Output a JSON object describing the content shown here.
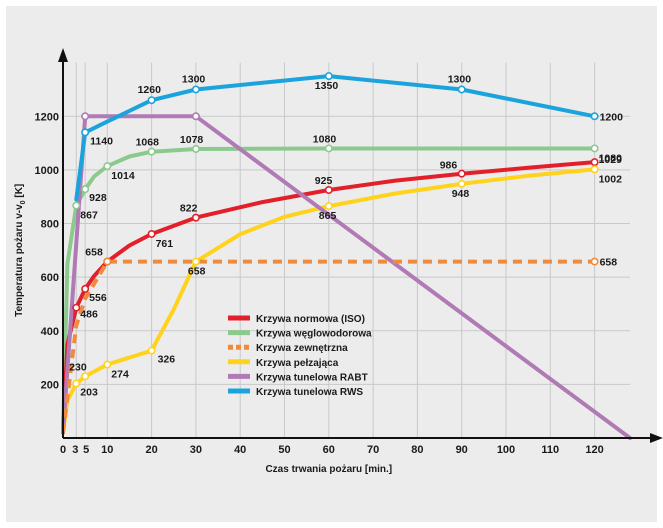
{
  "chart_data": {
    "type": "line",
    "title": "",
    "xlabel": "Czas trwania pożaru [min.]",
    "ylabel": "Temperatura pożaru v-v",
    "ylabel_sub": "0",
    "ylabel_unit": " [K]",
    "xlim": [
      0,
      128
    ],
    "ylim": [
      0,
      1400
    ],
    "x_ticks": [
      0,
      3,
      5,
      10,
      20,
      30,
      40,
      50,
      60,
      70,
      80,
      90,
      100,
      110,
      120
    ],
    "x_tick_labels": [
      "0",
      "3",
      "5",
      "10",
      "20",
      "30",
      "40",
      "50",
      "60",
      "70",
      "80",
      "90",
      "100",
      "110",
      "120"
    ],
    "y_ticks": [
      200,
      400,
      600,
      800,
      1000,
      1200
    ],
    "y_tick_labels": [
      "200",
      "400",
      "600",
      "800",
      "1000",
      "1200"
    ],
    "grid": true,
    "legend_position": "center",
    "series": [
      {
        "name": "Krzywa normowa (ISO)",
        "color": "#e3202a",
        "dash": false,
        "points": [
          [
            0,
            20
          ],
          [
            1,
            349
          ],
          [
            3,
            486
          ],
          [
            5,
            556
          ],
          [
            7,
            604
          ],
          [
            10,
            658
          ],
          [
            15,
            718
          ],
          [
            20,
            761
          ],
          [
            30,
            822
          ],
          [
            45,
            880
          ],
          [
            60,
            925
          ],
          [
            75,
            960
          ],
          [
            90,
            986
          ],
          [
            105,
            1008
          ],
          [
            120,
            1029
          ]
        ],
        "markers": [
          [
            3,
            486
          ],
          [
            5,
            556
          ],
          [
            10,
            658
          ],
          [
            20,
            761
          ],
          [
            30,
            822
          ],
          [
            60,
            925
          ],
          [
            90,
            986
          ],
          [
            120,
            1029
          ]
        ],
        "labels": [
          {
            "text": "486",
            "x": 3,
            "y": 486
          },
          {
            "text": "556",
            "x": 5,
            "y": 556
          },
          {
            "text": "658",
            "x": 10,
            "y": 658
          },
          {
            "text": "761",
            "x": 20,
            "y": 761
          },
          {
            "text": "822",
            "x": 30,
            "y": 822
          },
          {
            "text": "925",
            "x": 60,
            "y": 925
          },
          {
            "text": "986",
            "x": 90,
            "y": 986
          },
          {
            "text": "1029",
            "x": 120,
            "y": 1029
          }
        ]
      },
      {
        "name": "Krzywa węglowodorowa",
        "color": "#8cc98d",
        "dash": false,
        "points": [
          [
            0,
            20
          ],
          [
            1,
            650
          ],
          [
            3,
            867
          ],
          [
            5,
            928
          ],
          [
            7,
            975
          ],
          [
            10,
            1014
          ],
          [
            15,
            1050
          ],
          [
            20,
            1068
          ],
          [
            30,
            1078
          ],
          [
            60,
            1080
          ],
          [
            120,
            1080
          ]
        ],
        "markers": [
          [
            3,
            867
          ],
          [
            5,
            928
          ],
          [
            10,
            1014
          ],
          [
            20,
            1068
          ],
          [
            30,
            1078
          ],
          [
            60,
            1080
          ],
          [
            120,
            1080
          ]
        ],
        "labels": [
          {
            "text": "867",
            "x": 3,
            "y": 867
          },
          {
            "text": "928",
            "x": 5,
            "y": 928
          },
          {
            "text": "1014",
            "x": 10,
            "y": 1014
          },
          {
            "text": "1068",
            "x": 20,
            "y": 1068
          },
          {
            "text": "1078",
            "x": 30,
            "y": 1078
          },
          {
            "text": "1080",
            "x": 60,
            "y": 1080
          },
          {
            "text": "1080",
            "x": 120,
            "y": 1080
          }
        ]
      },
      {
        "name": "Krzywa zewnętrzna",
        "color": "#f08a3c",
        "dash": true,
        "points": [
          [
            0,
            20
          ],
          [
            3,
            420
          ],
          [
            5,
            520
          ],
          [
            10,
            658
          ],
          [
            120,
            658
          ]
        ],
        "markers": [
          [
            10,
            658
          ],
          [
            120,
            658
          ]
        ],
        "labels": [
          {
            "text": "658",
            "x": 30,
            "y": 658
          },
          {
            "text": "658",
            "x": 120,
            "y": 658
          }
        ]
      },
      {
        "name": "Krzywa pełzająca",
        "color": "#ffd21c",
        "dash": false,
        "points": [
          [
            0,
            20
          ],
          [
            1,
            140
          ],
          [
            3,
            203
          ],
          [
            5,
            230
          ],
          [
            10,
            274
          ],
          [
            20,
            326
          ],
          [
            25,
            480
          ],
          [
            30,
            658
          ],
          [
            40,
            760
          ],
          [
            50,
            825
          ],
          [
            60,
            865
          ],
          [
            75,
            912
          ],
          [
            90,
            948
          ],
          [
            105,
            978
          ],
          [
            120,
            1002
          ]
        ],
        "markers": [
          [
            3,
            203
          ],
          [
            5,
            230
          ],
          [
            10,
            274
          ],
          [
            20,
            326
          ],
          [
            30,
            658
          ],
          [
            60,
            865
          ],
          [
            90,
            948
          ],
          [
            120,
            1002
          ]
        ],
        "labels": [
          {
            "text": "203",
            "x": 3,
            "y": 203
          },
          {
            "text": "230",
            "x": 5,
            "y": 230
          },
          {
            "text": "274",
            "x": 10,
            "y": 274
          },
          {
            "text": "326",
            "x": 20,
            "y": 326
          },
          {
            "text": "865",
            "x": 60,
            "y": 865
          },
          {
            "text": "948",
            "x": 90,
            "y": 948
          },
          {
            "text": "1002",
            "x": 120,
            "y": 1002
          }
        ]
      },
      {
        "name": "Krzywa tunelowa RABT",
        "color": "#b07ab5",
        "dash": false,
        "points": [
          [
            0,
            20
          ],
          [
            5,
            1200
          ],
          [
            30,
            1200
          ],
          [
            128,
            0
          ]
        ],
        "markers": [
          [
            5,
            1200
          ],
          [
            30,
            1200
          ]
        ],
        "labels": []
      },
      {
        "name": "Krzywa tunelowa RWS",
        "color": "#1aa3dc",
        "dash": false,
        "points": [
          [
            3,
            890
          ],
          [
            5,
            1140
          ],
          [
            10,
            1180
          ],
          [
            20,
            1260
          ],
          [
            30,
            1300
          ],
          [
            60,
            1350
          ],
          [
            90,
            1300
          ],
          [
            120,
            1200
          ]
        ],
        "markers": [
          [
            5,
            1140
          ],
          [
            20,
            1260
          ],
          [
            30,
            1300
          ],
          [
            60,
            1350
          ],
          [
            90,
            1300
          ],
          [
            120,
            1200
          ]
        ],
        "labels": [
          {
            "text": "1140",
            "x": 5,
            "y": 1140
          },
          {
            "text": "1260",
            "x": 20,
            "y": 1260
          },
          {
            "text": "1300",
            "x": 30,
            "y": 1300
          },
          {
            "text": "1350",
            "x": 60,
            "y": 1350
          },
          {
            "text": "1300",
            "x": 90,
            "y": 1300
          },
          {
            "text": "1200",
            "x": 120,
            "y": 1200
          }
        ]
      }
    ]
  }
}
